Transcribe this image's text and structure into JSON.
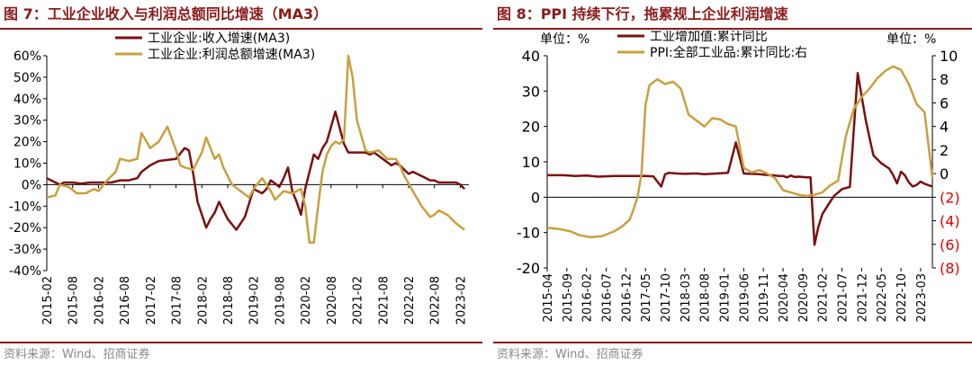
{
  "left": {
    "title": "图 7：工业企业收入与利润总额同比增速（MA3）",
    "source": "资料来源：Wind、招商证券"
  },
  "right": {
    "title": "图 8：PPI 持续下行，拖累规上企业利润增速",
    "source": "资料来源：Wind、招商证券"
  },
  "colors": {
    "dark_red": "#7b1010",
    "gold": "#c8a040",
    "title_red": "#8b1a1a",
    "neg_red": "#e00000"
  },
  "chart_data": [
    {
      "type": "line",
      "x_tick_labels": [
        "2015-02",
        "2015-08",
        "2016-02",
        "2016-08",
        "2017-02",
        "2017-08",
        "2018-02",
        "2018-08",
        "2019-02",
        "2019-08",
        "2020-02",
        "2020-08",
        "2021-02",
        "2021-08",
        "2022-02",
        "2022-08",
        "2023-02"
      ],
      "y_tick_labels": [
        "-40%",
        "-30%",
        "-20%",
        "-10%",
        "0%",
        "10%",
        "20%",
        "30%",
        "40%",
        "50%",
        "60%"
      ],
      "ylim": [
        -40,
        60
      ],
      "series": [
        {
          "name": "工业企业:收入增速(MA3)",
          "color": "#7b1010",
          "x": [
            0,
            1,
            3,
            4,
            6,
            8,
            10,
            12,
            15,
            17,
            19,
            21,
            22,
            24,
            26,
            28,
            30,
            32,
            33,
            34,
            35,
            37,
            38,
            39,
            40,
            42,
            44,
            46,
            48,
            50,
            51,
            52,
            54,
            55,
            56,
            57,
            58,
            59,
            60,
            61,
            62,
            63,
            64,
            65,
            66,
            67,
            69,
            70,
            72,
            73,
            74,
            75,
            76,
            78,
            80,
            81,
            82,
            83,
            84,
            85,
            87,
            89,
            90,
            91,
            93,
            95,
            96,
            97
          ],
          "y": [
            3,
            2,
            0,
            1,
            1,
            0.5,
            1,
            1,
            1,
            2,
            2,
            3,
            6,
            9,
            11,
            11.5,
            12,
            17,
            16,
            5,
            -8,
            -20,
            -16,
            -13,
            -8,
            -16,
            -21,
            -15,
            -2,
            -4,
            -2,
            2,
            -1,
            3,
            8,
            -3,
            -8,
            -14,
            -2,
            6,
            14,
            12,
            17,
            20,
            27,
            34,
            19,
            15,
            15,
            15,
            15,
            14,
            15,
            12,
            9,
            10,
            9,
            7,
            5,
            6,
            4,
            2,
            2,
            1,
            1,
            1,
            0,
            -2
          ]
        },
        {
          "name": "工业企业:利润总额增速(MA3)",
          "color": "#c8a040",
          "x": [
            0,
            2,
            3,
            5,
            7,
            9,
            11,
            12,
            14,
            16,
            17,
            19,
            21,
            22,
            24,
            26,
            28,
            30,
            31,
            32,
            34,
            36,
            37,
            39,
            40,
            41,
            43,
            45,
            47,
            48,
            50,
            52,
            53,
            55,
            57,
            59,
            60,
            61,
            62,
            63,
            64,
            65,
            66,
            67,
            68,
            69,
            70,
            71,
            72,
            74,
            75,
            77,
            79,
            81,
            82,
            83,
            85,
            87,
            89,
            90,
            91,
            93,
            95,
            97
          ],
          "y": [
            -6,
            -5,
            0,
            -1,
            -4,
            -4,
            -2,
            -3,
            2,
            6,
            12,
            11,
            12,
            24,
            17,
            20,
            27,
            16,
            9,
            8,
            7,
            15,
            22,
            12,
            14,
            8,
            0,
            -3,
            -6,
            -2,
            3,
            -3,
            -7,
            -3,
            -4,
            -2,
            -10,
            -27,
            -27,
            -10,
            6,
            14,
            18,
            20,
            19,
            21,
            60,
            50,
            30,
            16,
            15,
            16,
            12,
            12,
            9,
            4,
            -3,
            -10,
            -15,
            -14,
            -12,
            -14,
            -18,
            -21
          ]
        }
      ]
    },
    {
      "type": "line",
      "x_tick_labels": [
        "2015-04",
        "2015-09",
        "2016-02",
        "2016-07",
        "2016-12",
        "2017-05",
        "2017-10",
        "2018-03",
        "2018-08",
        "2019-01",
        "2019-06",
        "2019-11",
        "2020-04",
        "2020-09",
        "2021-02",
        "2021-07",
        "2021-12",
        "2022-05",
        "2022-10",
        "2023-03"
      ],
      "y_left_tick_labels": [
        "-20",
        "-10",
        "0",
        "10",
        "20",
        "30",
        "40"
      ],
      "y_right_tick_labels": [
        "(8)",
        "(6)",
        "(4)",
        "(2)",
        "0",
        "2",
        "4",
        "6",
        "8",
        "10"
      ],
      "y_left_unit": "单位：%",
      "y_right_unit": "单位：%",
      "ylim_left": [
        -20,
        40
      ],
      "ylim_right": [
        -8,
        10
      ],
      "series": [
        {
          "name": "工业增加值:累计同比",
          "axis": "left",
          "color": "#7b1010",
          "x": [
            0,
            4,
            7,
            10,
            13,
            17,
            20,
            23,
            25,
            27,
            29,
            30,
            31,
            33,
            35,
            37,
            38,
            39,
            40,
            43,
            46,
            48,
            50,
            52,
            54,
            55,
            56,
            57,
            58,
            59,
            60,
            61,
            62,
            63,
            64,
            65,
            66,
            67,
            68,
            69,
            70,
            72,
            73,
            74,
            75,
            77,
            79,
            81,
            82,
            83,
            85,
            87,
            88,
            89,
            90,
            91,
            92,
            93,
            94,
            95,
            96,
            98
          ],
          "y": [
            6.2,
            6.2,
            6.0,
            6.1,
            5.8,
            6.0,
            6.0,
            6.0,
            6.0,
            5.9,
            3.0,
            6.5,
            6.9,
            6.7,
            6.6,
            6.7,
            6.7,
            6.6,
            6.5,
            6.7,
            6.9,
            15.5,
            6.7,
            6.6,
            6.5,
            6.4,
            6.3,
            6.2,
            6.1,
            6.0,
            6.0,
            5.6,
            6.1,
            5.7,
            5.8,
            5.7,
            5.6,
            5.6,
            -13.5,
            -8.4,
            -4.8,
            -1.3,
            0.4,
            1.3,
            2.3,
            2.9,
            35.1,
            22.0,
            16.8,
            11.8,
            9.6,
            8.1,
            6.3,
            3.9,
            7.2,
            6.2,
            4.2,
            3.0,
            3.5,
            4.4,
            3.8,
            3.0
          ]
        },
        {
          "name": "PPI:全部工业品:累计同比:右",
          "axis": "right",
          "color": "#c8a040",
          "x": [
            0,
            3,
            6,
            8,
            11,
            14,
            17,
            19,
            21,
            22,
            23,
            24,
            25,
            26,
            28,
            30,
            32,
            34,
            36,
            38,
            40,
            42,
            44,
            46,
            48,
            50,
            52,
            54,
            56,
            58,
            60,
            62,
            64,
            66,
            68,
            70,
            72,
            74,
            76,
            78,
            80,
            82,
            84,
            86,
            88,
            90,
            92,
            94,
            96,
            98
          ],
          "y": [
            -4.6,
            -4.7,
            -4.9,
            -5.2,
            -5.4,
            -5.3,
            -4.9,
            -4.5,
            -3.9,
            -3.0,
            -2.0,
            0.0,
            5.8,
            7.5,
            8.0,
            7.6,
            7.8,
            7.2,
            5.0,
            4.5,
            4.0,
            4.7,
            4.6,
            4.2,
            4.0,
            0.5,
            0.1,
            0.3,
            0.0,
            -0.4,
            -1.4,
            -1.6,
            -1.8,
            -1.9,
            -1.8,
            -1.6,
            -1.0,
            -0.6,
            3.2,
            5.5,
            6.5,
            7.2,
            8.1,
            8.7,
            9.1,
            8.8,
            7.6,
            5.9,
            5.2,
            -0.4
          ]
        }
      ]
    }
  ]
}
